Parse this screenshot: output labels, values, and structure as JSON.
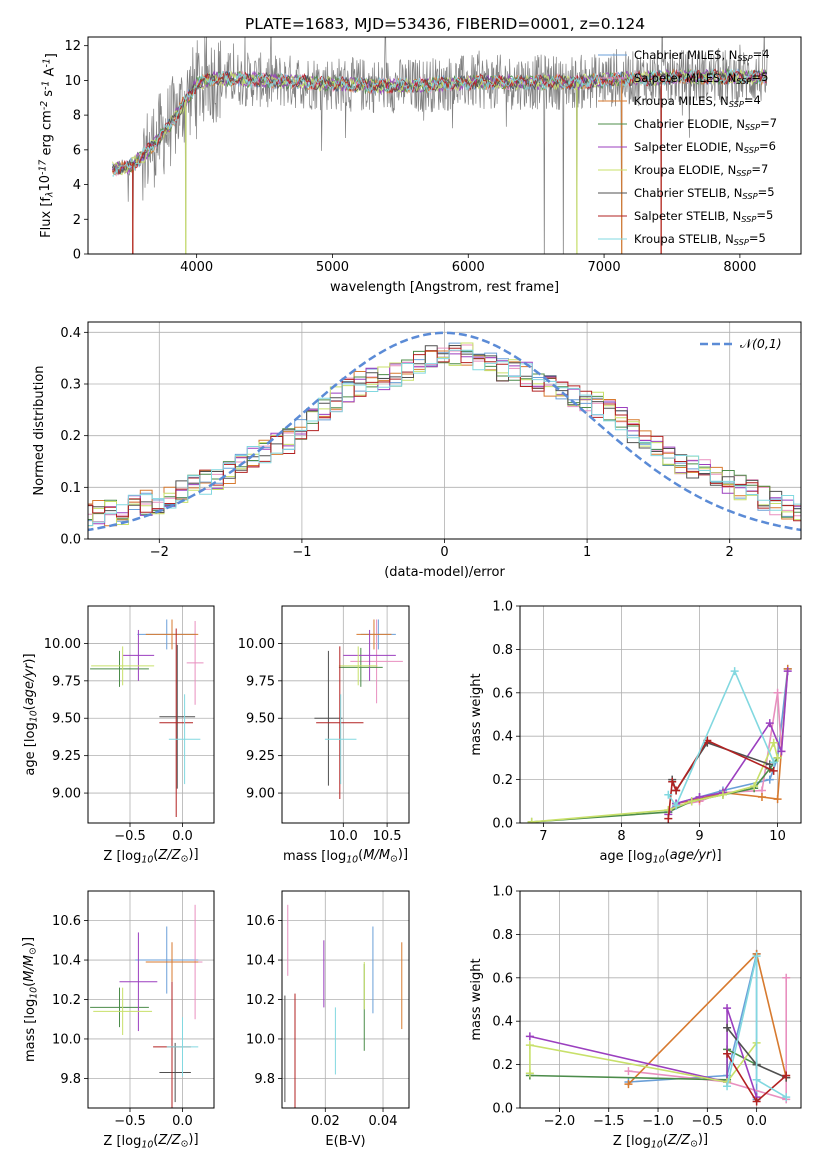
{
  "figure_title": "PLATE=1683, MJD=53436, FIBERID=0001, z=0.124",
  "model_colors": [
    "#6a9fd8",
    "#e88fbf",
    "#d77a2f",
    "#4c8c4a",
    "#9b3fbf",
    "#c8e06a",
    "#505050",
    "#b22222",
    "#82d8e0"
  ],
  "legend_labels": [
    "Chabrier MILES, N$_{SSP}$=4",
    "Salpeter MILES, N$_{SSP}$=5",
    "Kroupa MILES, N$_{SSP}$=4",
    "Chabrier ELODIE, N$_{SSP}$=7",
    "Salpeter ELODIE, N$_{SSP}$=6",
    "Kroupa ELODIE, N$_{SSP}$=7",
    "Chabrier STELIB, N$_{SSP}$=5",
    "Salpeter STELIB, N$_{SSP}$=5",
    "Kroupa STELIB, N$_{SSP}$=5"
  ],
  "chart_data": [
    {
      "type": "line",
      "panel": "spectrum",
      "xlabel": "wavelength [Angstrom, rest frame]",
      "ylabel": "Flux [f$_\\lambda$10$^{-17}$ erg cm$^{-2}$ s$^{-1}$ A$^{-1}$]",
      "xlim": [
        3200,
        8450
      ],
      "ylim": [
        0,
        12.5
      ],
      "xticks": [
        4000,
        5000,
        6000,
        7000,
        8000
      ],
      "yticks": [
        0,
        2,
        4,
        6,
        8,
        10,
        12
      ],
      "observed_color": "#808080",
      "model_trend": {
        "x": [
          3380,
          3500,
          3600,
          3700,
          3800,
          3900,
          4000,
          4100,
          4300,
          4500,
          4800,
          5000,
          5300,
          5600,
          6000,
          6400,
          6800,
          7200,
          7600,
          8000,
          8200
        ],
        "y": [
          4.9,
          5.0,
          5.6,
          6.5,
          7.4,
          8.6,
          9.8,
          10.1,
          10.1,
          10.0,
          9.9,
          9.8,
          9.7,
          9.7,
          9.9,
          9.9,
          9.9,
          10.1,
          10.2,
          10.2,
          10.2
        ]
      },
      "absorption_dips": [
        {
          "x": 3530,
          "y": 0
        },
        {
          "x": 3920,
          "y": 0
        },
        {
          "x": 6560,
          "y": 0
        },
        {
          "x": 6700,
          "y": 0
        },
        {
          "x": 6800,
          "y": 0
        },
        {
          "x": 7130,
          "y": 0
        },
        {
          "x": 7420,
          "y": 0
        }
      ]
    },
    {
      "type": "line",
      "panel": "residual_distribution",
      "xlabel": "(data-model)/error",
      "ylabel": "Normed distribution",
      "xlim": [
        -2.5,
        2.5
      ],
      "ylim": [
        0,
        0.42
      ],
      "xticks": [
        -2,
        -1,
        0,
        1,
        2
      ],
      "yticks": [
        0.0,
        0.1,
        0.2,
        0.3,
        0.4
      ],
      "grid": true,
      "legend": "top-right",
      "normal_label": "$\\mathcal{N}(0,1)$",
      "normal_color": "#5b8bd6",
      "bin_width": 0.1,
      "hist_base": [
        0.05,
        0.05,
        0.05,
        0.05,
        0.06,
        0.07,
        0.07,
        0.08,
        0.09,
        0.1,
        0.11,
        0.12,
        0.13,
        0.15,
        0.16,
        0.17,
        0.18,
        0.19,
        0.21,
        0.23,
        0.25,
        0.27,
        0.29,
        0.3,
        0.31,
        0.31,
        0.32,
        0.33,
        0.34,
        0.35,
        0.35,
        0.36,
        0.36,
        0.35,
        0.34,
        0.33,
        0.33,
        0.32,
        0.31,
        0.3,
        0.29,
        0.28,
        0.27,
        0.26,
        0.25,
        0.23,
        0.21,
        0.19,
        0.18,
        0.16,
        0.15,
        0.14,
        0.13,
        0.12,
        0.11,
        0.1,
        0.09,
        0.08,
        0.07,
        0.06,
        0.06,
        0.06,
        0.06
      ]
    },
    {
      "type": "scatter",
      "panel": "age_vs_Z",
      "xlabel": "Z [log$_{10}$($Z/Z_\\odot$)]",
      "ylabel": "age  [log$_{10}$($age/yr$)]",
      "xlim": [
        -0.9,
        0.3
      ],
      "ylim": [
        8.8,
        10.25
      ],
      "xticks": [
        -0.5,
        0.0
      ],
      "yticks": [
        9.0,
        9.25,
        9.5,
        9.75,
        10.0
      ],
      "grid": true,
      "points": [
        {
          "x": -0.15,
          "y": 10.06,
          "xerr": 0.28,
          "yerr": 0.1
        },
        {
          "x": 0.12,
          "y": 9.87,
          "xerr": 0.08,
          "yerr": 0.28
        },
        {
          "x": -0.1,
          "y": 10.06,
          "xerr": 0.25,
          "yerr": 0.1
        },
        {
          "x": -0.6,
          "y": 9.83,
          "xerr": 0.28,
          "yerr": 0.12
        },
        {
          "x": -0.42,
          "y": 9.92,
          "xerr": 0.15,
          "yerr": 0.17
        },
        {
          "x": -0.57,
          "y": 9.85,
          "xerr": 0.3,
          "yerr": 0.13
        },
        {
          "x": -0.05,
          "y": 9.51,
          "xerr": 0.17,
          "yerr": 0.48
        },
        {
          "x": -0.06,
          "y": 9.47,
          "xerr": 0.16,
          "yerr": 0.63
        },
        {
          "x": 0.02,
          "y": 9.36,
          "xerr": 0.15,
          "yerr": 0.3
        }
      ]
    },
    {
      "type": "scatter",
      "panel": "age_vs_mass",
      "xlabel": "mass [log$_{10}$($M/M_\\odot$)]",
      "ylabel": "",
      "xlim": [
        9.3,
        10.75
      ],
      "ylim": [
        8.8,
        10.25
      ],
      "xticks": [
        10.0,
        10.5
      ],
      "yticks": [
        9.0,
        9.25,
        9.5,
        9.75,
        10.0
      ],
      "grid": true,
      "points": [
        {
          "x": 10.4,
          "y": 10.06,
          "xerr": 0.2,
          "yerr": 0.1
        },
        {
          "x": 10.38,
          "y": 9.88,
          "xerr": 0.3,
          "yerr": 0.28
        },
        {
          "x": 10.35,
          "y": 10.06,
          "xerr": 0.2,
          "yerr": 0.1
        },
        {
          "x": 10.2,
          "y": 9.84,
          "xerr": 0.25,
          "yerr": 0.13
        },
        {
          "x": 10.3,
          "y": 9.92,
          "xerr": 0.3,
          "yerr": 0.17
        },
        {
          "x": 10.17,
          "y": 9.85,
          "xerr": 0.22,
          "yerr": 0.13
        },
        {
          "x": 9.83,
          "y": 9.5,
          "xerr": 0.16,
          "yerr": 0.45
        },
        {
          "x": 9.96,
          "y": 9.47,
          "xerr": 0.27,
          "yerr": 0.51
        },
        {
          "x": 9.97,
          "y": 9.36,
          "xerr": 0.18,
          "yerr": 0.3
        }
      ]
    },
    {
      "type": "line",
      "panel": "mass_weight_vs_age",
      "xlabel": "age  [log$_{10}$($age/yr$)]",
      "ylabel": "mass weight",
      "xlim": [
        6.7,
        10.3
      ],
      "ylim": [
        0,
        1.0
      ],
      "xticks": [
        7,
        8,
        9,
        10
      ],
      "yticks": [
        0.0,
        0.2,
        0.4,
        0.6,
        0.8,
        1.0
      ],
      "grid": true,
      "series": [
        {
          "x": [
            8.6,
            8.7,
            9.0,
            9.3,
            9.9,
            10.0,
            10.13
          ],
          "y": [
            0.05,
            0.09,
            0.12,
            0.15,
            0.2,
            0.3,
            0.71
          ]
        },
        {
          "x": [
            8.7,
            9.0,
            9.3,
            9.8,
            10.0,
            10.05
          ],
          "y": [
            0.08,
            0.1,
            0.14,
            0.15,
            0.6,
            0.33
          ]
        },
        {
          "x": [
            8.7,
            9.0,
            9.3,
            9.8,
            10.0,
            10.13
          ],
          "y": [
            0.09,
            0.11,
            0.14,
            0.12,
            0.11,
            0.71
          ]
        },
        {
          "x": [
            6.85,
            8.6,
            8.9,
            9.3,
            9.7,
            9.9,
            10.0
          ],
          "y": [
            0.005,
            0.05,
            0.1,
            0.13,
            0.16,
            0.25,
            0.3
          ]
        },
        {
          "x": [
            8.6,
            8.7,
            9.0,
            9.3,
            9.9,
            10.05,
            10.13
          ],
          "y": [
            0.04,
            0.09,
            0.12,
            0.14,
            0.46,
            0.33,
            0.7
          ]
        },
        {
          "x": [
            6.85,
            8.6,
            8.9,
            9.3,
            9.7,
            9.95,
            10.0
          ],
          "y": [
            0.005,
            0.06,
            0.1,
            0.13,
            0.17,
            0.37,
            0.3
          ]
        },
        {
          "x": [
            8.65,
            8.7,
            9.1,
            9.9
          ],
          "y": [
            0.2,
            0.15,
            0.37,
            0.27
          ]
        },
        {
          "x": [
            8.6,
            8.65,
            8.7,
            9.1,
            9.95
          ],
          "y": [
            0.02,
            0.19,
            0.15,
            0.38,
            0.24
          ]
        },
        {
          "x": [
            8.6,
            8.7,
            9.45,
            9.95
          ],
          "y": [
            0.13,
            0.08,
            0.7,
            0.28
          ]
        }
      ]
    },
    {
      "type": "scatter",
      "panel": "mass_vs_Z",
      "xlabel": "Z [log$_{10}$($Z/Z_\\odot$)]",
      "ylabel": "mass [log$_{10}$($M/M_\\odot$)]",
      "xlim": [
        -0.9,
        0.3
      ],
      "ylim": [
        9.65,
        10.75
      ],
      "xticks": [
        -0.5,
        0.0
      ],
      "yticks": [
        9.8,
        10.0,
        10.2,
        10.4,
        10.6
      ],
      "grid": true,
      "points": [
        {
          "x": -0.15,
          "y": 10.4,
          "xerr": 0.3,
          "yerr": 0.17
        },
        {
          "x": 0.12,
          "y": 10.39,
          "xerr": 0.07,
          "yerr": 0.29
        },
        {
          "x": -0.1,
          "y": 10.39,
          "xerr": 0.25,
          "yerr": 0.1
        },
        {
          "x": -0.6,
          "y": 10.16,
          "xerr": 0.28,
          "yerr": 0.1
        },
        {
          "x": -0.42,
          "y": 10.29,
          "xerr": 0.18,
          "yerr": 0.25
        },
        {
          "x": -0.57,
          "y": 10.14,
          "xerr": 0.28,
          "yerr": 0.12
        },
        {
          "x": -0.07,
          "y": 9.83,
          "xerr": 0.15,
          "yerr": 0.15
        },
        {
          "x": -0.1,
          "y": 9.96,
          "xerr": 0.18,
          "yerr": 0.33
        },
        {
          "x": 0.0,
          "y": 9.96,
          "xerr": 0.15,
          "yerr": 0.15
        }
      ]
    },
    {
      "type": "scatter",
      "panel": "mass_vs_EBV",
      "xlabel": "E(B-V)",
      "ylabel": "",
      "xlim": [
        0.005,
        0.049
      ],
      "ylim": [
        9.65,
        10.75
      ],
      "xticks": [
        0.02,
        0.04
      ],
      "yticks": [
        9.8,
        10.0,
        10.2,
        10.4,
        10.6
      ],
      "grid": true,
      "points": [
        {
          "x": 0.0365,
          "y": 10.35,
          "xerr": 0.0,
          "yerr": 0.22
        },
        {
          "x": 0.007,
          "y": 10.5,
          "xerr": 0.0,
          "yerr": 0.18
        },
        {
          "x": 0.0465,
          "y": 10.27,
          "xerr": 0.0,
          "yerr": 0.22
        },
        {
          "x": 0.0335,
          "y": 10.16,
          "xerr": 0.0,
          "yerr": 0.22
        },
        {
          "x": 0.0195,
          "y": 10.33,
          "xerr": 0.0,
          "yerr": 0.17
        },
        {
          "x": 0.0335,
          "y": 10.27,
          "xerr": 0.0,
          "yerr": 0.12
        },
        {
          "x": 0.006,
          "y": 9.95,
          "xerr": 0.0,
          "yerr": 0.27
        },
        {
          "x": 0.0095,
          "y": 9.93,
          "xerr": 0.0,
          "yerr": 0.3
        },
        {
          "x": 0.0235,
          "y": 9.99,
          "xerr": 0.0,
          "yerr": 0.17
        }
      ]
    },
    {
      "type": "line",
      "panel": "mass_weight_vs_Z",
      "xlabel": "Z [log$_{10}$($Z/Z_\\odot$)]",
      "ylabel": "mass weight",
      "xlim": [
        -2.4,
        0.45
      ],
      "ylim": [
        0,
        1.0
      ],
      "xticks": [
        -2.0,
        -1.5,
        -1.0,
        -0.5,
        0.0
      ],
      "yticks": [
        0.0,
        0.2,
        0.4,
        0.6,
        0.8,
        1.0
      ],
      "grid": true,
      "series": [
        {
          "x": [
            -1.3,
            -0.3,
            0.0,
            0.0
          ],
          "y": [
            0.12,
            0.15,
            0.71,
            0.04
          ]
        },
        {
          "x": [
            -1.3,
            -0.3,
            0.3,
            0.3
          ],
          "y": [
            0.17,
            0.12,
            0.04,
            0.6
          ]
        },
        {
          "x": [
            -1.3,
            0.0,
            0.3
          ],
          "y": [
            0.11,
            0.71,
            0.14
          ]
        },
        {
          "x": [
            -2.3,
            -0.3,
            -0.3,
            0.0
          ],
          "y": [
            0.15,
            0.13,
            0.27,
            0.2
          ]
        },
        {
          "x": [
            -2.3,
            -0.3,
            -0.3,
            0.0
          ],
          "y": [
            0.33,
            0.12,
            0.46,
            0.05
          ]
        },
        {
          "x": [
            -2.3,
            -2.3,
            -0.3,
            0.0
          ],
          "y": [
            0.16,
            0.29,
            0.12,
            0.3
          ]
        },
        {
          "x": [
            -0.3,
            0.0,
            0.3
          ],
          "y": [
            0.37,
            0.2,
            0.14
          ]
        },
        {
          "x": [
            -0.3,
            0.0,
            0.3
          ],
          "y": [
            0.25,
            0.03,
            0.15
          ]
        },
        {
          "x": [
            -0.3,
            0.0,
            0.0,
            0.3
          ],
          "y": [
            0.1,
            0.7,
            0.13,
            0.05
          ]
        }
      ]
    }
  ]
}
